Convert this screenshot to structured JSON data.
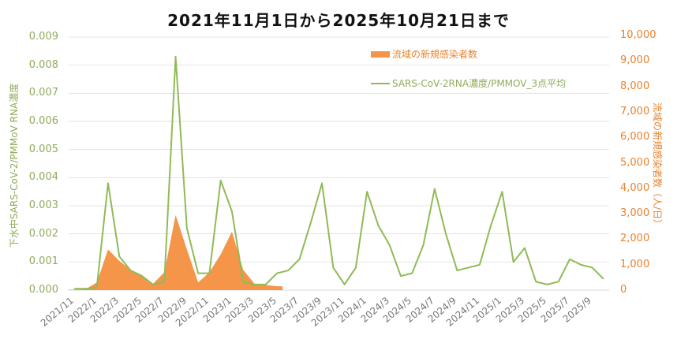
{
  "chart_data": {
    "type": "bar+line",
    "title": "2021年11月1日から2025年10月21日まで",
    "xlabel": "",
    "ylabel_left": "下水中SARS-CoV-2/PMMoV RNA濃度",
    "ylabel_right": "流域の新規感染者数（人/日）",
    "ylim_left": [
      0,
      0.009
    ],
    "ylim_right": [
      0,
      10000
    ],
    "yticks_left": [
      "0.000",
      "0.001",
      "0.002",
      "0.003",
      "0.004",
      "0.005",
      "0.006",
      "0.007",
      "0.008",
      "0.009"
    ],
    "yticks_right": [
      "0",
      "1,000",
      "2,000",
      "3,000",
      "4,000",
      "5,000",
      "6,000",
      "7,000",
      "8,000",
      "9,000",
      "10,000"
    ],
    "categories": [
      "2021/11",
      "2022/1",
      "2022/3",
      "2022/5",
      "2022/7",
      "2022/9",
      "2022/11",
      "2023/1",
      "2023/3",
      "2023/5",
      "2023/7",
      "2023/9",
      "2023/11",
      "2024/1",
      "2024/3",
      "2024/5",
      "2024/7",
      "2024/9",
      "2024/11",
      "2025/1",
      "2025/3",
      "2025/5",
      "2025/7",
      "2025/9"
    ],
    "grid": true,
    "legend_position": "top-right inside",
    "series": [
      {
        "name": "流域の新規感染者数",
        "type": "bar",
        "axis": "right",
        "color": "#f4954a",
        "x": [
          "2021/11",
          "2021/12",
          "2022/1",
          "2022/2",
          "2022/3",
          "2022/4",
          "2022/5",
          "2022/6",
          "2022/7",
          "2022/8",
          "2022/9",
          "2022/10",
          "2022/11",
          "2022/12",
          "2023/1",
          "2023/2",
          "2023/3",
          "2023/4",
          "2023/5"
        ],
        "values": [
          20,
          30,
          300,
          1600,
          1150,
          800,
          600,
          250,
          700,
          2950,
          1600,
          300,
          700,
          1400,
          2300,
          800,
          250,
          200,
          150
        ]
      },
      {
        "name": "SARS-CoV-2RNA濃度/PMMOV_3点平均",
        "type": "line",
        "axis": "left",
        "color": "#8fbb57",
        "x": [
          "2021/11",
          "2021/12",
          "2022/1",
          "2022/2",
          "2022/3",
          "2022/4",
          "2022/5",
          "2022/6",
          "2022/7",
          "2022/8",
          "2022/9",
          "2022/10",
          "2022/11",
          "2022/12",
          "2023/1",
          "2023/2",
          "2023/3",
          "2023/4",
          "2023/5",
          "2023/6",
          "2023/7",
          "2023/8",
          "2023/9",
          "2023/10",
          "2023/11",
          "2023/12",
          "2024/1",
          "2024/2",
          "2024/3",
          "2024/4",
          "2024/5",
          "2024/6",
          "2024/7",
          "2024/8",
          "2024/9",
          "2024/10",
          "2024/11",
          "2024/12",
          "2025/1",
          "2025/2",
          "2025/3",
          "2025/4",
          "2025/5",
          "2025/6",
          "2025/7",
          "2025/8",
          "2025/9",
          "2025/10"
        ],
        "values": [
          5e-05,
          5e-05,
          0.0001,
          0.0038,
          0.0012,
          0.0007,
          0.0005,
          0.0002,
          0.0003,
          0.0083,
          0.0022,
          0.0006,
          0.0006,
          0.0039,
          0.0028,
          0.0003,
          0.0002,
          0.0002,
          0.0006,
          0.0007,
          0.0011,
          0.0024,
          0.0038,
          0.0008,
          0.0002,
          0.0008,
          0.0035,
          0.0023,
          0.0016,
          0.0005,
          0.0006,
          0.0016,
          0.0036,
          0.002,
          0.0007,
          0.0008,
          0.0009,
          0.0023,
          0.0035,
          0.001,
          0.0015,
          0.0003,
          0.0002,
          0.0003,
          0.0011,
          0.0009,
          0.0008,
          0.0004
        ]
      }
    ]
  },
  "legend": {
    "bar_label": "流域の新規感染者数",
    "line_label": "SARS-CoV-2RNA濃度/PMMOV_3点平均"
  }
}
